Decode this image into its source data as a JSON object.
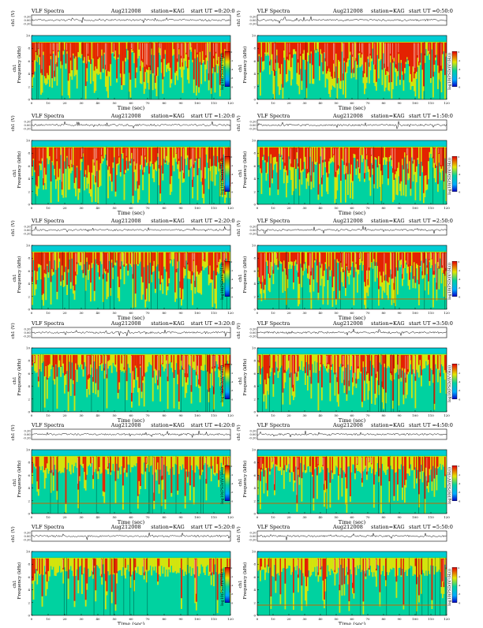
{
  "header_left": "VLF Spectra",
  "date": "Aug212008",
  "station": "station=KAG",
  "waveform_ylabel": "ch1 (V)",
  "spec_ylabel": "Frequency (kHz)",
  "spec_ylabel_prefix": "ch1",
  "xlabel": "Time (sec)",
  "colorbar_label": "log10(PSD/(V²/Hz))",
  "wave_ticks": [
    "0.20",
    "0.00",
    "-0.20"
  ],
  "freq_ticks": [
    "0",
    "2",
    "4",
    "6",
    "8",
    "10"
  ],
  "time_ticks": [
    "0",
    "10",
    "20",
    "30",
    "40",
    "50",
    "60",
    "70",
    "80",
    "90",
    "100",
    "110",
    "120"
  ],
  "colorbar_ticks": [
    "0",
    "-2",
    "-4",
    "-6",
    "-8"
  ],
  "colors": {
    "background": "#00c8a0",
    "low": "#00d2a0",
    "mid": "#e6e600",
    "high": "#e60000",
    "trace": "#000000"
  },
  "chart_data": [
    {
      "type": "heatmap",
      "title": "start UT =0:20:0",
      "ut": "0:20:0",
      "x_range": [
        0,
        120
      ],
      "y_range": [
        0,
        10
      ],
      "activity": 0.85,
      "hum_line": false
    },
    {
      "type": "heatmap",
      "title": "start UT =0:50:0",
      "ut": "0:50:0",
      "x_range": [
        0,
        120
      ],
      "y_range": [
        0,
        10
      ],
      "activity": 0.85,
      "hum_line": false
    },
    {
      "type": "heatmap",
      "title": "start UT =1:20:0",
      "ut": "1:20:0",
      "x_range": [
        0,
        120
      ],
      "y_range": [
        0,
        10
      ],
      "activity": 0.8,
      "hum_line": false
    },
    {
      "type": "heatmap",
      "title": "start UT =1:50:0",
      "ut": "1:50:0",
      "x_range": [
        0,
        120
      ],
      "y_range": [
        0,
        10
      ],
      "activity": 0.8,
      "hum_line": false
    },
    {
      "type": "heatmap",
      "title": "start UT =2:20:0",
      "ut": "2:20:0",
      "x_range": [
        0,
        120
      ],
      "y_range": [
        0,
        10
      ],
      "activity": 0.7,
      "hum_line": false
    },
    {
      "type": "heatmap",
      "title": "start UT =2:50:0",
      "ut": "2:50:0",
      "x_range": [
        0,
        120
      ],
      "y_range": [
        0,
        10
      ],
      "activity": 0.7,
      "hum_line": true
    },
    {
      "type": "heatmap",
      "title": "start UT =3:20:0",
      "ut": "3:20:0",
      "x_range": [
        0,
        120
      ],
      "y_range": [
        0,
        10
      ],
      "activity": 0.55,
      "hum_line": false
    },
    {
      "type": "heatmap",
      "title": "start UT =3:50:0",
      "ut": "3:50:0",
      "x_range": [
        0,
        120
      ],
      "y_range": [
        0,
        10
      ],
      "activity": 0.55,
      "hum_line": false
    },
    {
      "type": "heatmap",
      "title": "start UT =4:20:0",
      "ut": "4:20:0",
      "x_range": [
        0,
        120
      ],
      "y_range": [
        0,
        10
      ],
      "activity": 0.4,
      "hum_line": true
    },
    {
      "type": "heatmap",
      "title": "start UT =4:50:0",
      "ut": "4:50:0",
      "x_range": [
        0,
        120
      ],
      "y_range": [
        0,
        10
      ],
      "activity": 0.45,
      "hum_line": true
    },
    {
      "type": "heatmap",
      "title": "start UT =5:20:0",
      "ut": "5:20:0",
      "x_range": [
        0,
        120
      ],
      "y_range": [
        0,
        10
      ],
      "activity": 0.3,
      "hum_line": false
    },
    {
      "type": "heatmap",
      "title": "start UT =5:50:0",
      "ut": "5:50:0",
      "x_range": [
        0,
        120
      ],
      "y_range": [
        0,
        10
      ],
      "activity": 0.3,
      "hum_line": true
    }
  ]
}
